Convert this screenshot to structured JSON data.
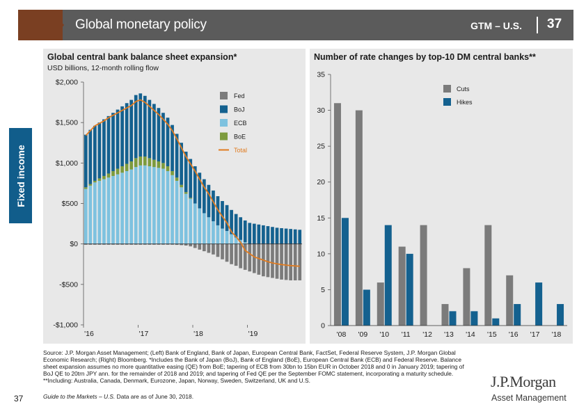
{
  "header": {
    "title": "Global monetary policy",
    "gtm": "GTM – U.S.",
    "page": "37"
  },
  "side_tab": "Fixed income",
  "colors": {
    "fed": "#7b7b7b",
    "boj": "#14618f",
    "ecb": "#7ec2df",
    "boe": "#7d9b3e",
    "total": "#e07b20",
    "cuts": "#7b7b7b",
    "hikes": "#14618f",
    "header": "#5b5b5b",
    "header_accent": "#7a3f22",
    "panel": "#e8e8e8",
    "side_tab": "#115d8b"
  },
  "chart_data": [
    {
      "type": "bar",
      "stacked": true,
      "title": "Global central bank balance sheet expansion*",
      "subtitle": "USD billions, 12-month rolling flow",
      "ylim": [
        -1000,
        2000
      ],
      "y_ticks": [
        2000,
        1500,
        1000,
        500,
        0,
        -500,
        -1000
      ],
      "y_tick_labels": [
        "$2,000",
        "$1,500",
        "$1,000",
        "$500",
        "$0",
        "-$500",
        "-$1,000"
      ],
      "x_tick_labels": [
        "'16",
        "'17",
        "'18",
        "'19"
      ],
      "x_tick_index": [
        0,
        12,
        24,
        36
      ],
      "n_periods": 48,
      "legend": [
        "Fed",
        "BoJ",
        "ECB",
        "BoE",
        "Total"
      ],
      "total": [
        1340,
        1400,
        1460,
        1490,
        1520,
        1560,
        1590,
        1620,
        1650,
        1680,
        1710,
        1760,
        1780,
        1750,
        1700,
        1650,
        1600,
        1540,
        1480,
        1400,
        1300,
        1190,
        1080,
        990,
        900,
        800,
        700,
        620,
        520,
        420,
        340,
        260,
        150,
        90,
        20,
        -80,
        -120,
        -160,
        -180,
        -200,
        -220,
        -235,
        -245,
        -255,
        -262,
        -268,
        -272,
        -275
      ],
      "fed": [
        -10,
        -10,
        -10,
        -10,
        -10,
        -10,
        -10,
        -10,
        -10,
        -10,
        -10,
        -10,
        -10,
        -10,
        -10,
        -10,
        -10,
        -10,
        -10,
        -10,
        -12,
        -15,
        -20,
        -30,
        -50,
        -70,
        -90,
        -110,
        -130,
        -160,
        -190,
        -220,
        -250,
        -270,
        -300,
        -320,
        -340,
        -360,
        -380,
        -400,
        -410,
        -420,
        -430,
        -440,
        -445,
        -450,
        -450,
        -450
      ],
      "boj": [
        650,
        670,
        680,
        690,
        700,
        710,
        720,
        730,
        740,
        750,
        760,
        780,
        780,
        750,
        720,
        690,
        660,
        620,
        600,
        570,
        540,
        520,
        500,
        480,
        460,
        440,
        420,
        400,
        380,
        360,
        340,
        320,
        300,
        290,
        280,
        270,
        260,
        250,
        240,
        230,
        220,
        210,
        200,
        195,
        190,
        185,
        180,
        175
      ],
      "ecb": [
        680,
        720,
        760,
        780,
        800,
        820,
        840,
        860,
        880,
        900,
        920,
        950,
        970,
        970,
        960,
        950,
        940,
        930,
        900,
        850,
        780,
        700,
        620,
        560,
        500,
        440,
        380,
        330,
        280,
        230,
        190,
        160,
        120,
        80,
        50,
        20,
        0,
        0,
        0,
        0,
        0,
        0,
        0,
        0,
        0,
        0,
        0,
        0
      ],
      "boe": [
        20,
        20,
        20,
        30,
        40,
        50,
        60,
        70,
        80,
        90,
        100,
        110,
        110,
        110,
        100,
        90,
        80,
        70,
        60,
        50,
        40,
        30,
        20,
        10,
        0,
        0,
        0,
        0,
        0,
        0,
        0,
        0,
        0,
        0,
        0,
        0,
        0,
        0,
        0,
        0,
        0,
        0,
        0,
        0,
        0,
        0,
        0,
        0
      ]
    },
    {
      "type": "bar",
      "title": "Number of rate changes by top-10 DM central banks**",
      "ylim": [
        0,
        35
      ],
      "y_ticks": [
        0,
        5,
        10,
        15,
        20,
        25,
        30,
        35
      ],
      "categories": [
        "'08",
        "'09",
        "'10",
        "'11",
        "'12",
        "'13",
        "'14",
        "'15",
        "'16",
        "'17",
        "'18"
      ],
      "series": [
        {
          "name": "Cuts",
          "values": [
            31,
            30,
            6,
            11,
            14,
            3,
            8,
            14,
            7,
            0,
            0
          ]
        },
        {
          "name": "Hikes",
          "values": [
            15,
            5,
            14,
            10,
            0,
            2,
            2,
            1,
            3,
            6,
            3
          ]
        }
      ],
      "legend": [
        "Cuts",
        "Hikes"
      ]
    }
  ],
  "footnote": "Source: J.P. Morgan Asset Management; (Left) Bank of England, Bank of Japan, European Central Bank, FactSet, Federal Reserve System, J.P. Morgan Global Economic Research; (Right) Bloomberg. *Includes the Bank of Japan (BoJ), Bank of England (BoE), European Central Bank (ECB) and Federal Reserve. Balance sheet expansion assumes no more quantitative easing (QE) from BoE; tapering of ECB from 30bn to 15bn EUR in October 2018 and 0 in January 2019; tapering of BoJ QE to 20trn JPY ann. for the remainder of 2018 and 2019; and tapering of Fed QE per the September FOMC statement, incorporating a maturity schedule. **Including: Australia, Canada, Denmark, Eurozone, Japan, Norway, Sweden, Switzerland, UK and U.S.",
  "footnote_guide": "Guide to the Markets – U.S.",
  "footnote_date": " Data are as of June 30, 2018.",
  "page_number": "37",
  "logo": {
    "main": "J.P.Morgan",
    "sub": "Asset Management"
  }
}
